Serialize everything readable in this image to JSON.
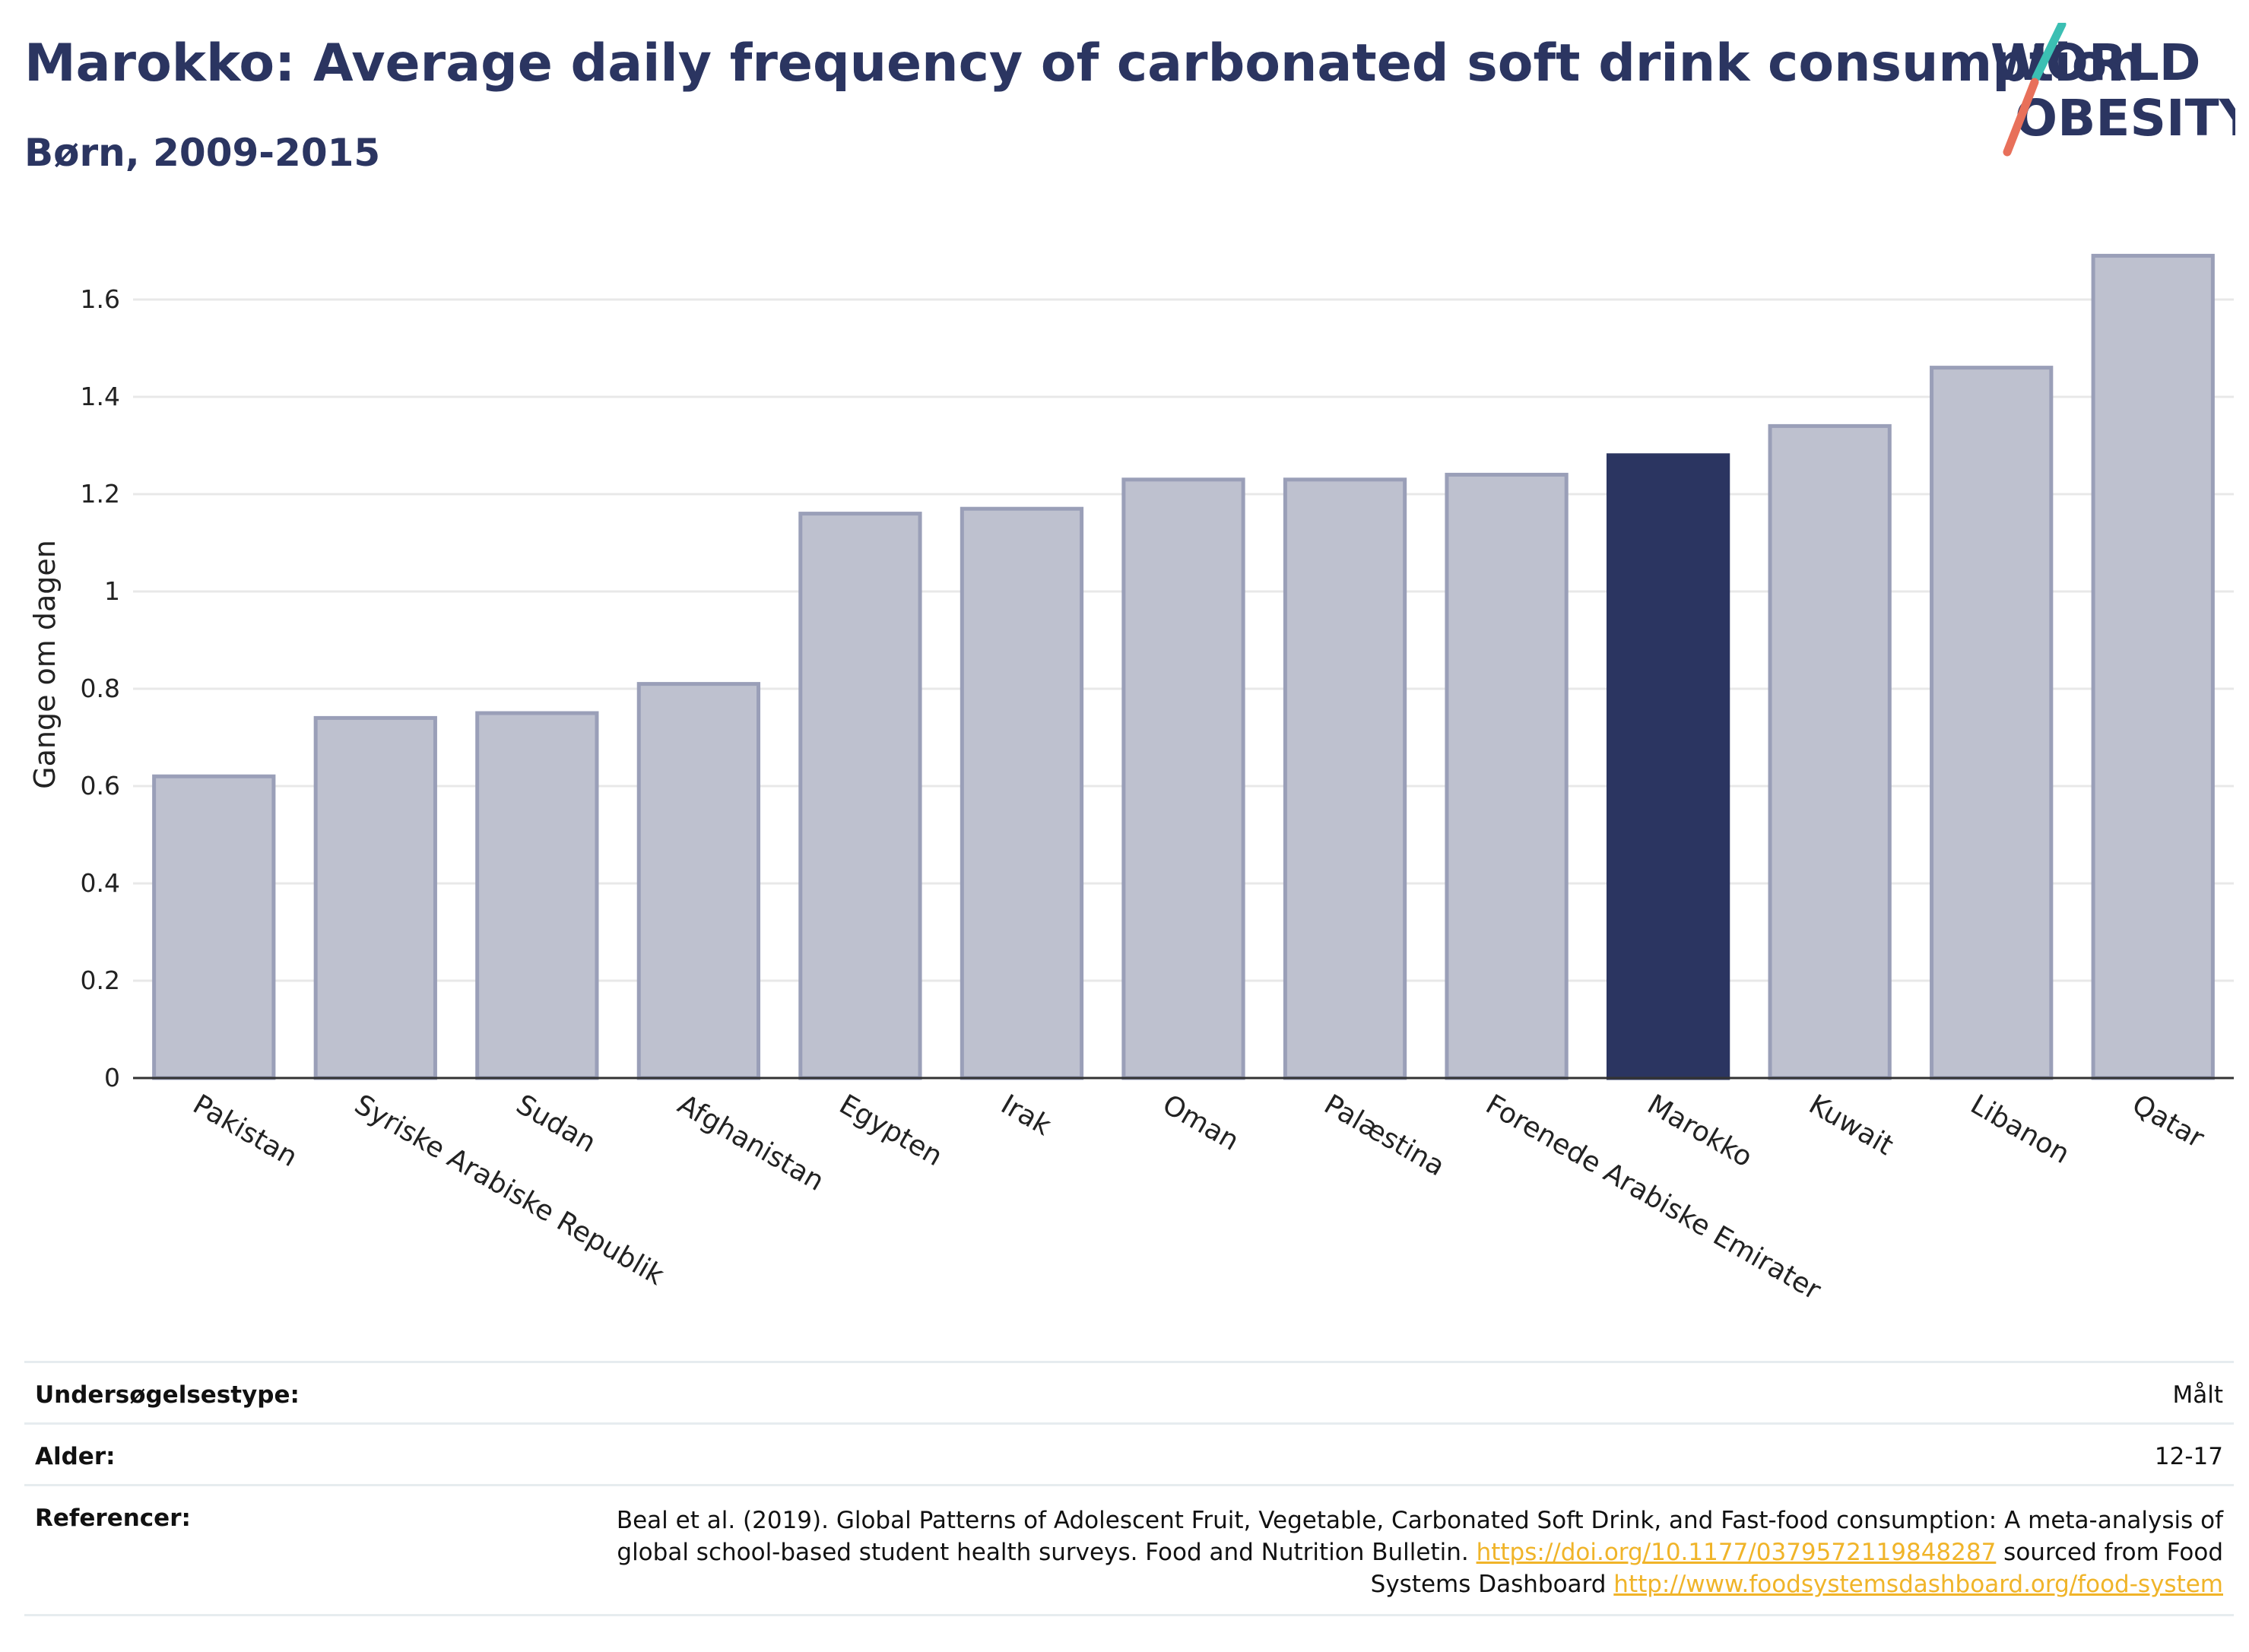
{
  "header": {
    "title": "Marokko: Average daily frequency of carbonated soft drink consumption",
    "subtitle": "Børn, 2009-2015"
  },
  "logo": {
    "line1": "WORLD",
    "line2": "OBESITY"
  },
  "colors": {
    "highlight": "#2b3561",
    "bar_fill": "#bec1cf",
    "bar_stroke": "#9a9fb8",
    "grid": "#e8e8e8",
    "logo_text": "#2b3561",
    "logo_slash_teal": "#3bbfb3",
    "logo_slash_coral": "#e8705a",
    "link": "#f0b429"
  },
  "chart_data": {
    "type": "bar",
    "title": "Marokko: Average daily frequency of carbonated soft drink consumption",
    "subtitle": "Børn, 2009-2015",
    "xlabel": "",
    "ylabel": "Gange om dagen",
    "ylim": [
      0,
      1.7
    ],
    "yticks": [
      0,
      0.2,
      0.4,
      0.6,
      0.8,
      1,
      1.2,
      1.4,
      1.6
    ],
    "ytick_labels": [
      "0",
      "0.2",
      "0.4",
      "0.6",
      "0.8",
      "1",
      "1.2",
      "1.4",
      "1.6"
    ],
    "grid": true,
    "highlight": "Marokko",
    "categories": [
      "Pakistan",
      "Syriske Arabiske Republik",
      "Sudan",
      "Afghanistan",
      "Egypten",
      "Irak",
      "Oman",
      "Palæstina",
      "Forenede Arabiske Emirater",
      "Marokko",
      "Kuwait",
      "Libanon",
      "Qatar"
    ],
    "values": [
      0.62,
      0.74,
      0.75,
      0.81,
      1.16,
      1.17,
      1.23,
      1.23,
      1.24,
      1.28,
      1.34,
      1.46,
      1.69
    ]
  },
  "meta": {
    "survey_type_label": "Undersøgelsestype:",
    "survey_type_value": "Målt",
    "age_label": "Alder:",
    "age_value": "12-17",
    "references_label": "Referencer:",
    "references_text_1": "Beal et al. (2019). Global Patterns of Adolescent Fruit, Vegetable, Carbonated Soft Drink, and Fast-food consumption: A meta-analysis of global school-based student health surveys. Food and Nutrition Bulletin. ",
    "references_link_1": "https://doi.org/10.1177/0379572119848287",
    "references_text_2": " sourced from Food Systems Dashboard ",
    "references_link_2": "http://www.foodsystemsdashboard.org/food-system"
  }
}
